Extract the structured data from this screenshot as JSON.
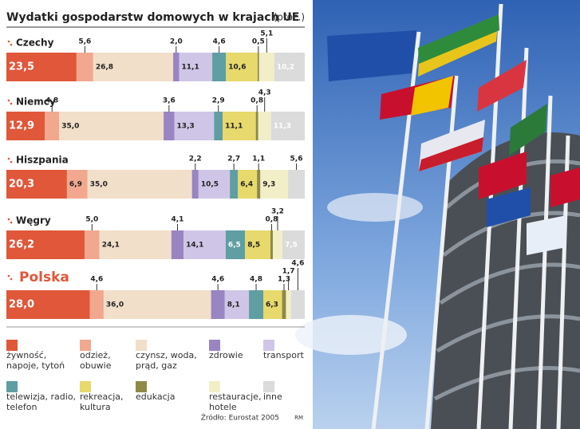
{
  "chart_data": {
    "type": "bar",
    "orientation": "horizontal",
    "stacked": true,
    "title": "Wydatki gospodarstw domowych w krajach UE",
    "unit_note": "(proc.)",
    "source": "Źródło: Eurostat 2005",
    "credit": "RM",
    "highlight": "Polska",
    "categories": [
      "Czechy",
      "Niemcy",
      "Hiszpania",
      "Węgry",
      "Polska"
    ],
    "series": [
      {
        "name": "żywność, napoje, tytoń",
        "color": "#e0573a",
        "values": [
          23.5,
          12.9,
          20.3,
          26.2,
          28.0
        ],
        "value_labels": [
          "23,5",
          "12,9",
          "20,3",
          "26,2",
          "28,0"
        ]
      },
      {
        "name": "odzież, obuwie",
        "color": "#f1a88f",
        "values": [
          5.6,
          4.8,
          6.9,
          5.0,
          4.6
        ],
        "value_labels": [
          "5,6",
          "4,8",
          "6,9",
          "5,0",
          "4,6"
        ]
      },
      {
        "name": "czynsz, woda, prąd, gaz",
        "color": "#f2dfc9",
        "values": [
          26.8,
          35.0,
          35.0,
          24.1,
          36.0
        ],
        "value_labels": [
          "26,8",
          "35,0",
          "35,0",
          "24,1",
          "36,0"
        ]
      },
      {
        "name": "zdrowie",
        "color": "#9985c2",
        "values": [
          2.0,
          3.6,
          2.2,
          4.1,
          4.6
        ],
        "value_labels": [
          "2,0",
          "3,6",
          "2,2",
          "4,1",
          "4,6"
        ]
      },
      {
        "name": "transport",
        "color": "#cfc6e7",
        "values": [
          11.1,
          13.3,
          10.5,
          14.1,
          8.1
        ],
        "value_labels": [
          "11,1",
          "13,3",
          "10,5",
          "14,1",
          "8,1"
        ]
      },
      {
        "name": "telewizja, radio, telefon",
        "color": "#5f9ea2",
        "values": [
          4.6,
          2.9,
          2.7,
          6.5,
          4.8
        ],
        "value_labels": [
          "4,6",
          "2,9",
          "2,7",
          "6,5",
          "4,8"
        ]
      },
      {
        "name": "rekreacja, kultura",
        "color": "#e7d96c",
        "values": [
          10.6,
          11.1,
          6.4,
          8.5,
          6.3
        ],
        "value_labels": [
          "10,6",
          "11,1",
          "6,4",
          "8,5",
          "6,3"
        ]
      },
      {
        "name": "edukacja",
        "color": "#8e8947",
        "values": [
          0.5,
          0.8,
          1.1,
          0.8,
          1.3
        ],
        "value_labels": [
          "0,5",
          "0,8",
          "1,1",
          "0,8",
          "1,3"
        ]
      },
      {
        "name": "restauracje, hotele",
        "color": "#f2eec8",
        "values": [
          5.1,
          4.3,
          9.3,
          3.2,
          1.7
        ],
        "value_labels": [
          "5,1",
          "4,3",
          "9,3",
          "3,2",
          "1,7"
        ]
      },
      {
        "name": "inne",
        "color": "#dbdbdb",
        "values": [
          10.2,
          11.3,
          5.6,
          7.5,
          4.6
        ],
        "value_labels": [
          "10,2",
          "11,3",
          "5,6",
          "7,5",
          "4,6"
        ]
      }
    ]
  }
}
